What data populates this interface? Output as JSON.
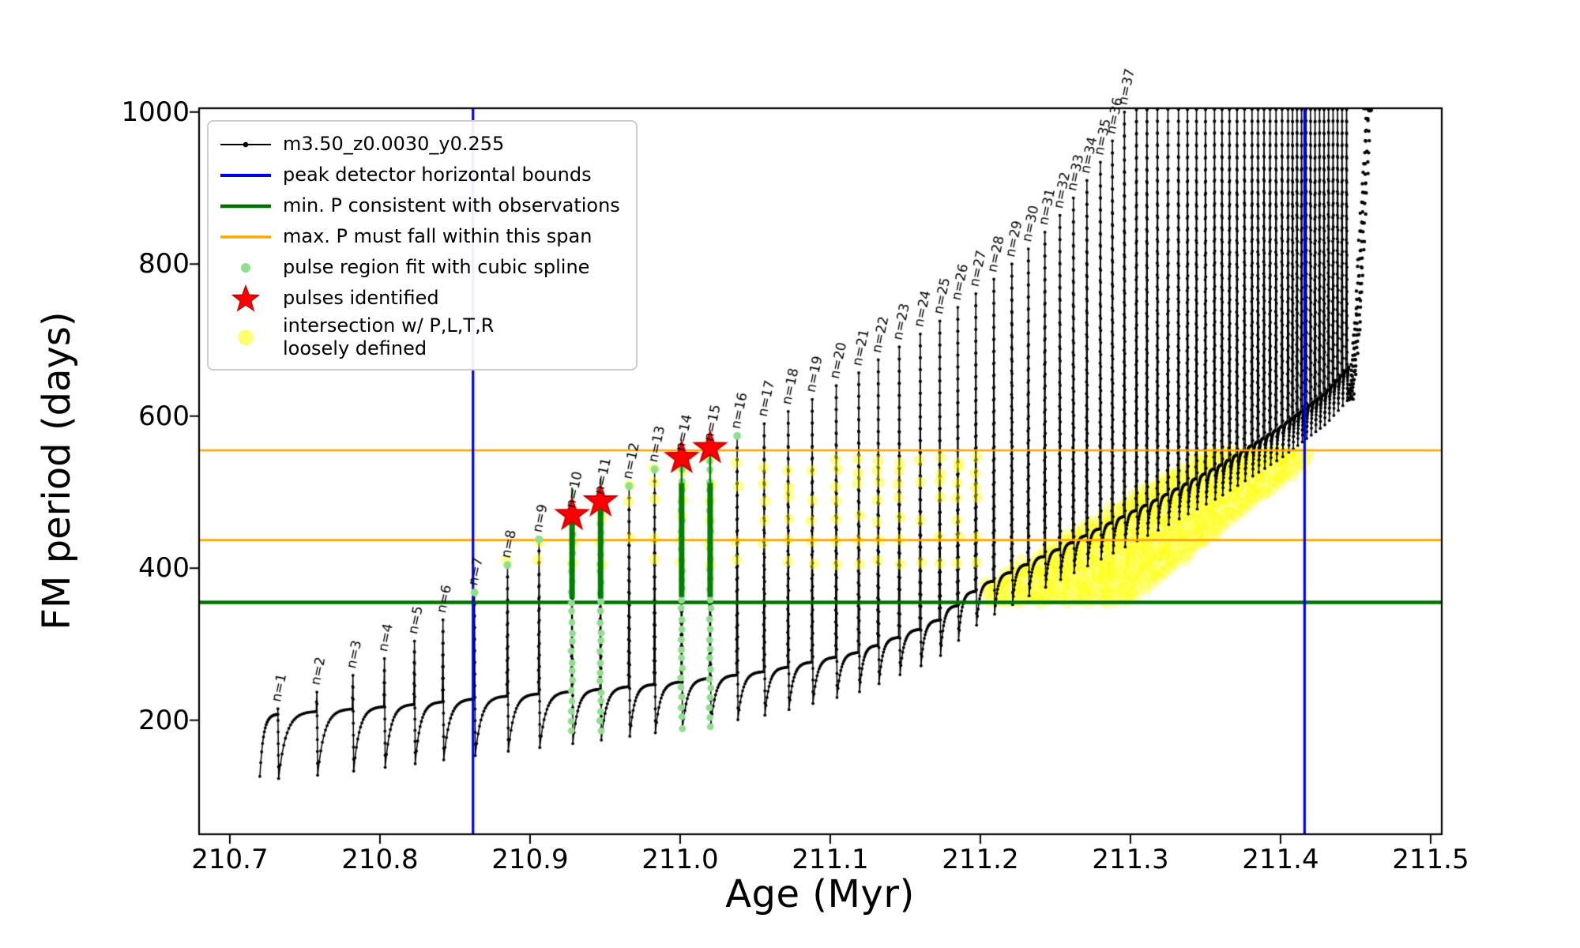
{
  "chart_data": {
    "type": "line",
    "title": "",
    "xlabel": "Age (Myr)",
    "ylabel": "FM period (days)",
    "xlim": [
      210.6795,
      211.5074
    ],
    "ylim": [
      50,
      1005
    ],
    "x_ticks": [
      "210.7",
      "210.8",
      "210.9",
      "211.0",
      "211.1",
      "211.2",
      "211.3",
      "211.4",
      "211.5"
    ],
    "y_ticks": [
      "200",
      "400",
      "600",
      "800",
      "1000"
    ],
    "grid": false,
    "legend": {
      "position": "upper-left",
      "items": [
        {
          "label": "m3.50_z0.0030_y0.255",
          "marker": "line-dot",
          "color": "#000000"
        },
        {
          "label": "peak detector horizontal bounds",
          "marker": "line",
          "color": "#0000ee",
          "lw": 4
        },
        {
          "label": "min. P consistent with observations",
          "marker": "line",
          "color": "#007000",
          "lw": 4.5
        },
        {
          "label": "max. P must fall within this span",
          "marker": "line",
          "color": "#ffa500",
          "lw": 3.5
        },
        {
          "label": "pulse region fit with cubic spline",
          "marker": "dot",
          "color": "#8fdf8f",
          "r": 6
        },
        {
          "label": "pulses identified",
          "marker": "star",
          "color": "#ff0000"
        },
        {
          "label": "intersection w/ P,L,T,R\nloosely defined",
          "marker": "dot",
          "color": "#ffff00",
          "r": 10,
          "alpha": 0.55
        }
      ]
    },
    "colors": {
      "curve": "#000000",
      "bounds": "#0000ee",
      "min_p": "#007000",
      "max_p": "#ffa500",
      "spline_dot": "#8fdf8f",
      "spline_solid": "#008000",
      "star": "#ff0000",
      "star_edge": "#cc0000",
      "yellow": "#ffff00"
    },
    "peak_detector_bounds_age": [
      210.862,
      211.416
    ],
    "min_P_consistent": 355,
    "max_P_span": [
      437,
      555
    ],
    "curve": {
      "series_label": "m3.50_z0.0030_y0.255",
      "start": {
        "age": 210.72,
        "period": 126
      },
      "pulses": [
        {
          "n": 1,
          "age": 210.732,
          "peak": 215
        },
        {
          "n": 2,
          "age": 210.758,
          "peak": 237
        },
        {
          "n": 3,
          "age": 210.782,
          "peak": 259
        },
        {
          "n": 4,
          "age": 210.803,
          "peak": 281
        },
        {
          "n": 5,
          "age": 210.823,
          "peak": 304
        },
        {
          "n": 6,
          "age": 210.842,
          "peak": 332
        },
        {
          "n": 7,
          "age": 210.863,
          "peak": 368
        },
        {
          "n": 8,
          "age": 210.885,
          "peak": 404
        },
        {
          "n": 9,
          "age": 210.906,
          "peak": 438
        },
        {
          "n": 10,
          "age": 210.928,
          "peak": 470
        },
        {
          "n": 11,
          "age": 210.947,
          "peak": 488
        },
        {
          "n": 12,
          "age": 210.966,
          "peak": 508
        },
        {
          "n": 13,
          "age": 210.983,
          "peak": 530
        },
        {
          "n": 14,
          "age": 211.001,
          "peak": 545
        },
        {
          "n": 15,
          "age": 211.02,
          "peak": 558
        },
        {
          "n": 16,
          "age": 211.038,
          "peak": 574
        },
        {
          "n": 17,
          "age": 211.056,
          "peak": 590
        },
        {
          "n": 18,
          "age": 211.072,
          "peak": 606
        },
        {
          "n": 19,
          "age": 211.088,
          "peak": 622
        },
        {
          "n": 20,
          "age": 211.104,
          "peak": 640
        },
        {
          "n": 21,
          "age": 211.119,
          "peak": 657
        },
        {
          "n": 22,
          "age": 211.132,
          "peak": 674
        },
        {
          "n": 23,
          "age": 211.146,
          "peak": 691
        },
        {
          "n": 24,
          "age": 211.16,
          "peak": 708
        },
        {
          "n": 25,
          "age": 211.173,
          "peak": 725
        },
        {
          "n": 26,
          "age": 211.185,
          "peak": 743
        },
        {
          "n": 27,
          "age": 211.197,
          "peak": 761
        },
        {
          "n": 28,
          "age": 211.209,
          "peak": 780
        },
        {
          "n": 29,
          "age": 211.221,
          "peak": 800
        },
        {
          "n": 30,
          "age": 211.232,
          "peak": 820
        },
        {
          "n": 31,
          "age": 211.243,
          "peak": 842
        },
        {
          "n": 32,
          "age": 211.253,
          "peak": 864
        },
        {
          "n": 33,
          "age": 211.262,
          "peak": 887
        },
        {
          "n": 34,
          "age": 211.271,
          "peak": 910
        },
        {
          "n": 35,
          "age": 211.28,
          "peak": 934
        },
        {
          "n": 36,
          "age": 211.288,
          "peak": 962
        },
        {
          "n": 37,
          "age": 211.296,
          "peak": 1000
        }
      ],
      "extra_spike_ages": [
        211.304,
        211.311,
        211.318,
        211.325,
        211.332,
        211.338,
        211.344,
        211.35,
        211.356,
        211.361,
        211.366,
        211.371,
        211.376,
        211.381,
        211.385,
        211.389,
        211.393,
        211.397,
        211.401,
        211.405,
        211.408,
        211.411,
        211.414,
        211.417,
        211.42,
        211.423,
        211.426,
        211.429,
        211.432,
        211.435,
        211.438,
        211.441,
        211.444
      ],
      "extra_spike_peak": 1035,
      "dip_anchors": [
        [
          210.7,
          118
        ],
        [
          210.76,
          128
        ],
        [
          210.82,
          142
        ],
        [
          210.88,
          158
        ],
        [
          210.94,
          172
        ],
        [
          211.0,
          188
        ],
        [
          211.06,
          208
        ],
        [
          211.12,
          238
        ],
        [
          211.17,
          280
        ],
        [
          211.2,
          330
        ],
        [
          211.24,
          372
        ],
        [
          211.28,
          412
        ],
        [
          211.32,
          452
        ],
        [
          211.36,
          495
        ],
        [
          211.4,
          545
        ],
        [
          211.43,
          590
        ],
        [
          211.46,
          655
        ]
      ],
      "shoulder_gain": {
        "age0": 210.75,
        "gain0": 85,
        "age1": 211.25,
        "gain1": 40
      },
      "final_rise": {
        "age_start": 211.446,
        "age_end": 211.458,
        "p_start": 622,
        "p_end": 1005
      }
    },
    "pulses_identified_stars": [
      {
        "age": 210.928,
        "period": 470
      },
      {
        "age": 210.947,
        "period": 488
      },
      {
        "age": 211.001,
        "period": 545
      },
      {
        "age": 211.02,
        "period": 558
      }
    ],
    "spline_columns": [
      {
        "age": 210.928,
        "y_min": 186,
        "y_max": 470,
        "solid_min": 360,
        "solid_max": 470,
        "whisker_max": 506
      },
      {
        "age": 210.947,
        "y_min": 186,
        "y_max": 488,
        "solid_min": 360,
        "solid_max": 488,
        "whisker_max": 518
      },
      {
        "age": 211.001,
        "y_min": 190,
        "y_max": 545,
        "solid_min": 362,
        "solid_max": 512,
        "whisker_max": 545
      },
      {
        "age": 211.02,
        "y_min": 190,
        "y_max": 558,
        "solid_min": 362,
        "solid_max": 512,
        "whisker_max": 558
      }
    ],
    "spline_top_dots": [
      {
        "age": 210.863,
        "period": 368
      },
      {
        "age": 210.885,
        "period": 404
      },
      {
        "age": 210.906,
        "period": 438
      },
      {
        "age": 210.966,
        "period": 508
      },
      {
        "age": 210.983,
        "period": 530
      },
      {
        "age": 211.038,
        "period": 574
      }
    ],
    "yellow_sparse": {
      "age_min": 210.86,
      "age_max": 211.202,
      "levels": [
        408,
        437,
        465,
        490,
        510,
        528,
        543
      ]
    },
    "yellow_blob": {
      "age_start": 211.205,
      "age_end": 211.42,
      "col_step": 0.0045,
      "top_start": 380,
      "top_slope": 1200,
      "top_max": 556,
      "bottom_base": 358,
      "bottom_knee": 211.3,
      "bottom_slope": 1550
    }
  }
}
